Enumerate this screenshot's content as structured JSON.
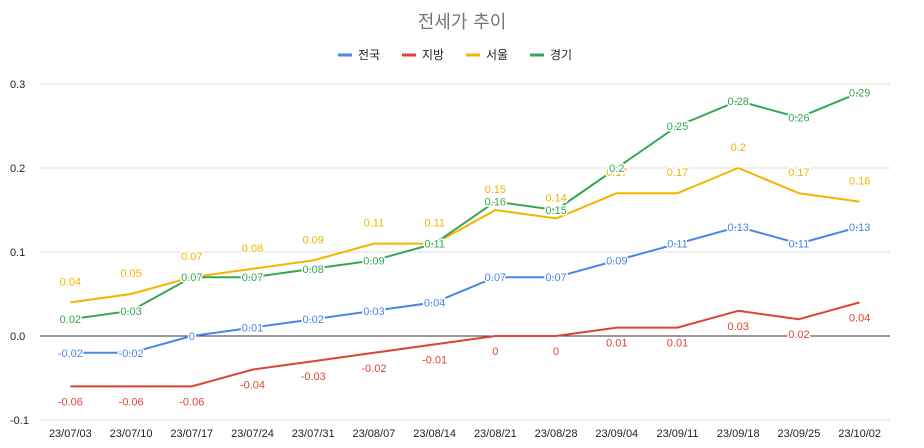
{
  "chart_data": {
    "type": "line",
    "title": "전세가 추이",
    "categories": [
      "23/07/03",
      "23/07/10",
      "23/07/17",
      "23/07/24",
      "23/07/31",
      "23/08/07",
      "23/08/14",
      "23/08/21",
      "23/08/28",
      "23/09/04",
      "23/09/11",
      "23/09/18",
      "23/09/25",
      "23/10/02"
    ],
    "ylim": [
      -0.1,
      0.3
    ],
    "yticks": [
      "-0.1",
      "0.0",
      "0.1",
      "0.2",
      "0.3"
    ],
    "ytick_values": [
      -0.1,
      0.0,
      0.1,
      0.2,
      0.3
    ],
    "legend_position": "top",
    "xlabel": "",
    "ylabel": "",
    "series": [
      {
        "name": "전국",
        "color": "#4a86e8",
        "values": [
          -0.02,
          -0.02,
          0,
          0.01,
          0.02,
          0.03,
          0.04,
          0.07,
          0.07,
          0.09,
          0.11,
          0.13,
          0.11,
          0.13
        ],
        "labels": [
          "-0.02",
          "-0.02",
          "0",
          "0.01",
          "0.02",
          "0.03",
          "0.04",
          "0.07",
          "0.07",
          "0.09",
          "0.11",
          "0.13",
          "0.11",
          "0.13"
        ]
      },
      {
        "name": "지방",
        "color": "#db4437",
        "values": [
          -0.06,
          -0.06,
          -0.06,
          -0.04,
          -0.03,
          -0.02,
          -0.01,
          0,
          0,
          0.01,
          0.01,
          0.03,
          0.02,
          0.04
        ],
        "labels": [
          "-0.06",
          "-0.06",
          "-0.06",
          "-0.04",
          "-0.03",
          "-0.02",
          "-0.01",
          "0",
          "0",
          "0.01",
          "0.01",
          "0.03",
          "0.02",
          "0.04"
        ]
      },
      {
        "name": "서울",
        "color": "#f4b400",
        "values": [
          0.04,
          0.05,
          0.07,
          0.08,
          0.09,
          0.11,
          0.11,
          0.15,
          0.14,
          0.17,
          0.17,
          0.2,
          0.17,
          0.16
        ],
        "labels": [
          "0.04",
          "0.05",
          "0.07",
          "0.08",
          "0.09",
          "0.11",
          "0.11",
          "0.15",
          "0.14",
          "0.17",
          "0.17",
          "0.2",
          "0.17",
          "0.16"
        ]
      },
      {
        "name": "경기",
        "color": "#34a853",
        "values": [
          0.02,
          0.03,
          0.07,
          0.07,
          0.08,
          0.09,
          0.11,
          0.16,
          0.15,
          0.2,
          0.25,
          0.28,
          0.26,
          0.29
        ],
        "labels": [
          "0.02",
          "0.03",
          "0.07",
          "0.07",
          "0.08",
          "0.09",
          "0.11",
          "0.16",
          "0.15",
          "0.2",
          "0.25",
          "0.28",
          "0.26",
          "0.29"
        ]
      }
    ]
  }
}
